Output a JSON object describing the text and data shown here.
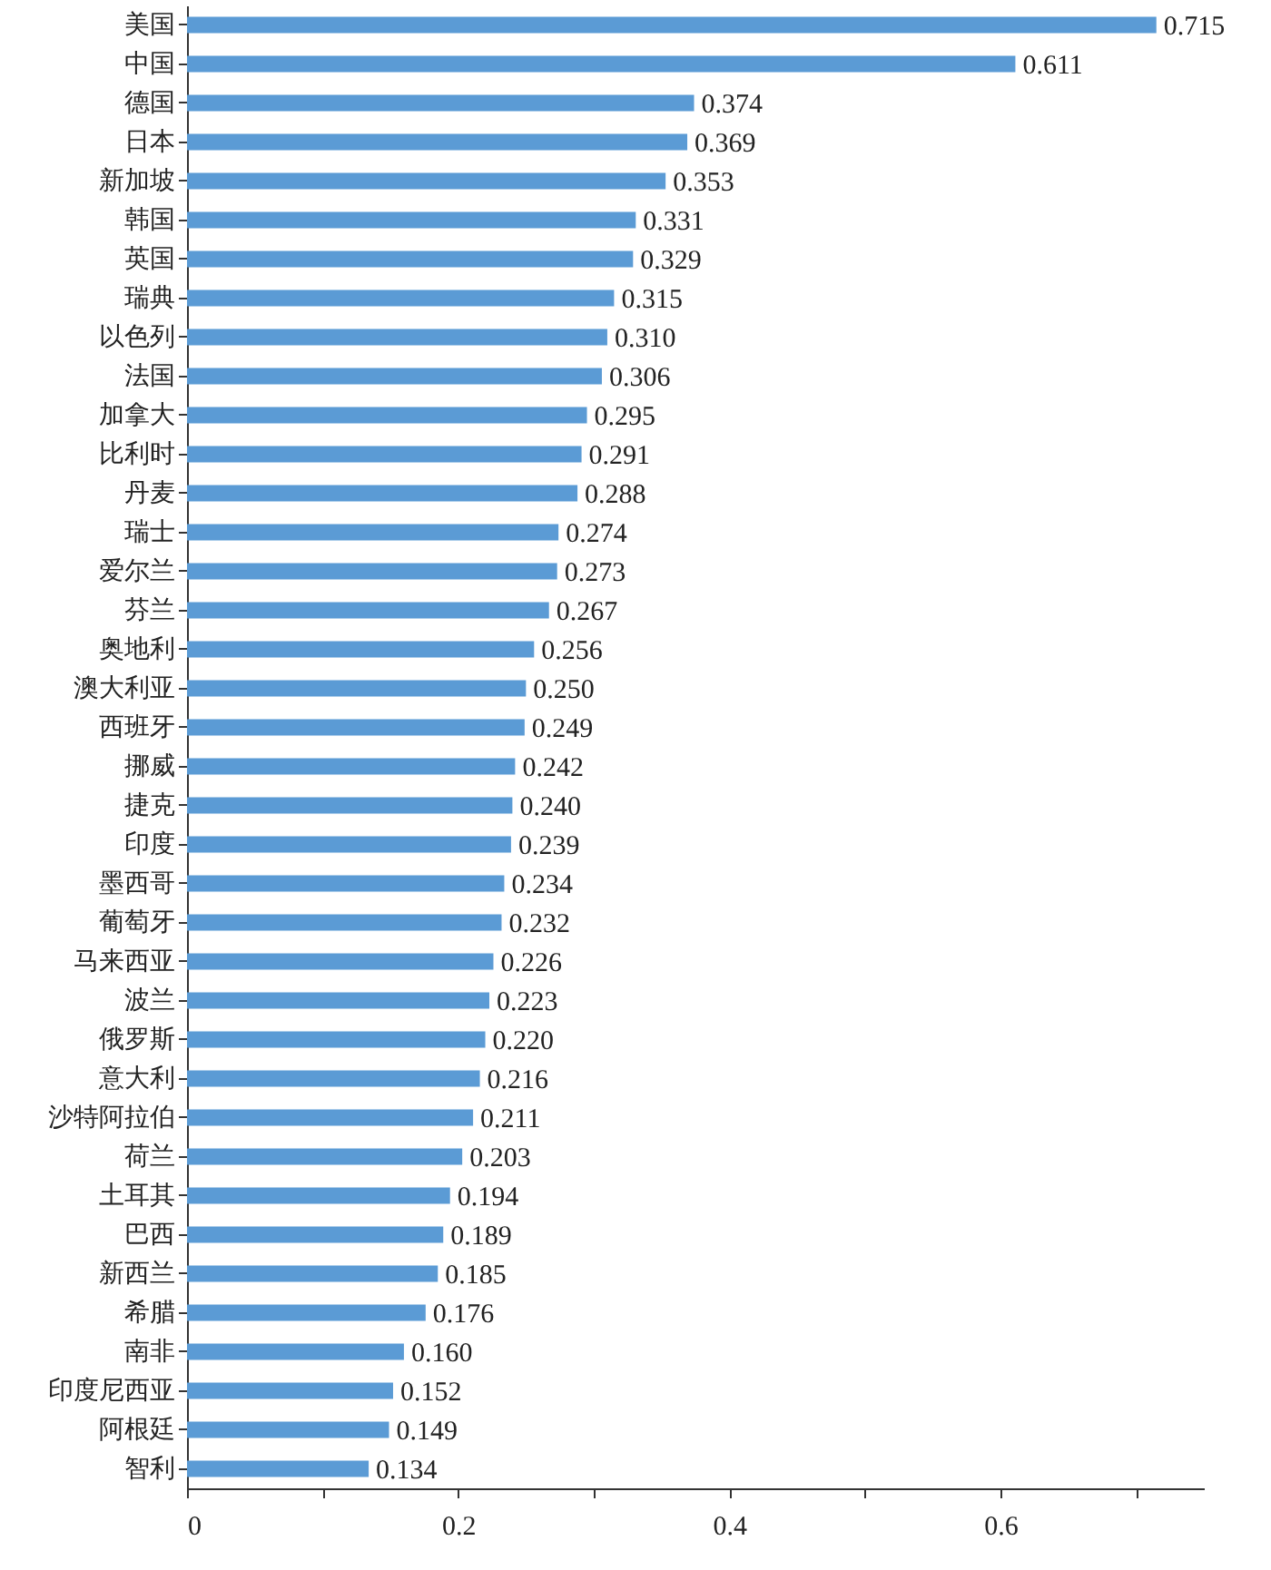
{
  "chart_data": {
    "type": "bar",
    "orientation": "horizontal",
    "categories": [
      "美国",
      "中国",
      "德国",
      "日本",
      "新加坡",
      "韩国",
      "英国",
      "瑞典",
      "以色列",
      "法国",
      "加拿大",
      "比利时",
      "丹麦",
      "瑞士",
      "爱尔兰",
      "芬兰",
      "奥地利",
      "澳大利亚",
      "西班牙",
      "挪威",
      "捷克",
      "印度",
      "墨西哥",
      "葡萄牙",
      "马来西亚",
      "波兰",
      "俄罗斯",
      "意大利",
      "沙特阿拉伯",
      "荷兰",
      "土耳其",
      "巴西",
      "新西兰",
      "希腊",
      "南非",
      "印度尼西亚",
      "阿根廷",
      "智利"
    ],
    "values": [
      0.715,
      0.611,
      0.374,
      0.369,
      0.353,
      0.331,
      0.329,
      0.315,
      0.31,
      0.306,
      0.295,
      0.291,
      0.288,
      0.274,
      0.273,
      0.267,
      0.256,
      0.25,
      0.249,
      0.242,
      0.24,
      0.239,
      0.234,
      0.232,
      0.226,
      0.223,
      0.22,
      0.216,
      0.211,
      0.203,
      0.194,
      0.189,
      0.185,
      0.176,
      0.16,
      0.152,
      0.149,
      0.134
    ],
    "value_labels": [
      "0.715",
      "0.611",
      "0.374",
      "0.369",
      "0.353",
      "0.331",
      "0.329",
      "0.315",
      "0.310",
      "0.306",
      "0.295",
      "0.291",
      "0.288",
      "0.274",
      "0.273",
      "0.267",
      "0.256",
      "0.250",
      "0.249",
      "0.242",
      "0.240",
      "0.239",
      "0.234",
      "0.232",
      "0.226",
      "0.223",
      "0.220",
      "0.216",
      "0.211",
      "0.203",
      "0.194",
      "0.189",
      "0.185",
      "0.176",
      "0.160",
      "0.152",
      "0.149",
      "0.134"
    ],
    "color": "#5b9bd5",
    "xlim": [
      0,
      0.75
    ],
    "xticks": [
      0,
      {
        "value": 0.1,
        "label": null
      },
      0.2,
      {
        "value": 0.3,
        "label": null
      },
      0.4,
      {
        "value": 0.5,
        "label": null
      },
      0.6,
      {
        "value": 0.7,
        "label": null
      }
    ],
    "grid": false
  }
}
